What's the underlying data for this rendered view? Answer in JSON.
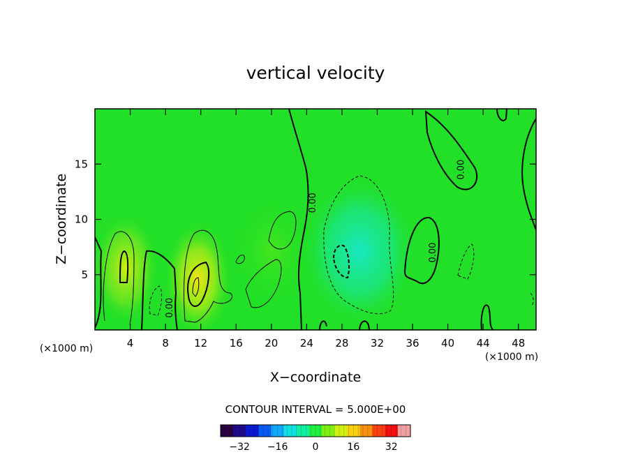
{
  "chart_data": {
    "type": "heatmap",
    "title": "vertical velocity",
    "xlabel": "X−coordinate",
    "ylabel": "Z−coordinate",
    "x_unit_left": "(×1000 m)",
    "x_unit_right": "(×1000 m)",
    "xlim": [
      0,
      50
    ],
    "ylim": [
      0,
      20
    ],
    "x_ticks": [
      4,
      8,
      12,
      16,
      20,
      24,
      28,
      32,
      36,
      40,
      44,
      48
    ],
    "x_tick_labels": [
      "4",
      "8",
      "12",
      "16",
      "20",
      "24",
      "28",
      "32",
      "36",
      "40",
      "44",
      "48"
    ],
    "y_ticks": [
      5,
      10,
      15
    ],
    "y_tick_labels": [
      "5",
      "10",
      "15"
    ],
    "contour_interval_text": "CONTOUR INTERVAL = 5.000E+00",
    "contour_labels": [
      {
        "text": "0.00",
        "x": 8.8,
        "z": 2.0
      },
      {
        "text": "0.00",
        "x": 25.0,
        "z": 11.5
      },
      {
        "text": "0.00",
        "x": 38.6,
        "z": 7.0
      },
      {
        "text": "0.00",
        "x": 41.8,
        "z": 14.5
      }
    ],
    "colorbar": {
      "min": -40,
      "max": 40,
      "tick_values": [
        -32,
        -16,
        0,
        16,
        32
      ],
      "tick_labels": [
        "−32",
        "−16",
        "0",
        "16",
        "32"
      ],
      "colors": [
        "#2b0040",
        "#200a8a",
        "#0a1ad0",
        "#0a5cf0",
        "#10a8f8",
        "#10e0e0",
        "#10f0a0",
        "#20f040",
        "#80f010",
        "#d0f010",
        "#f8d010",
        "#f89010",
        "#f84010",
        "#f01010",
        "#f0a0a0"
      ]
    },
    "features": [
      {
        "name": "updraft",
        "x": 3.5,
        "z": 5.5,
        "w": 9
      },
      {
        "name": "updraft",
        "x": 11.5,
        "z": 4.0,
        "w": 13
      },
      {
        "name": "downdraft",
        "x": 28.5,
        "z": 6.5,
        "w": -9
      }
    ]
  }
}
